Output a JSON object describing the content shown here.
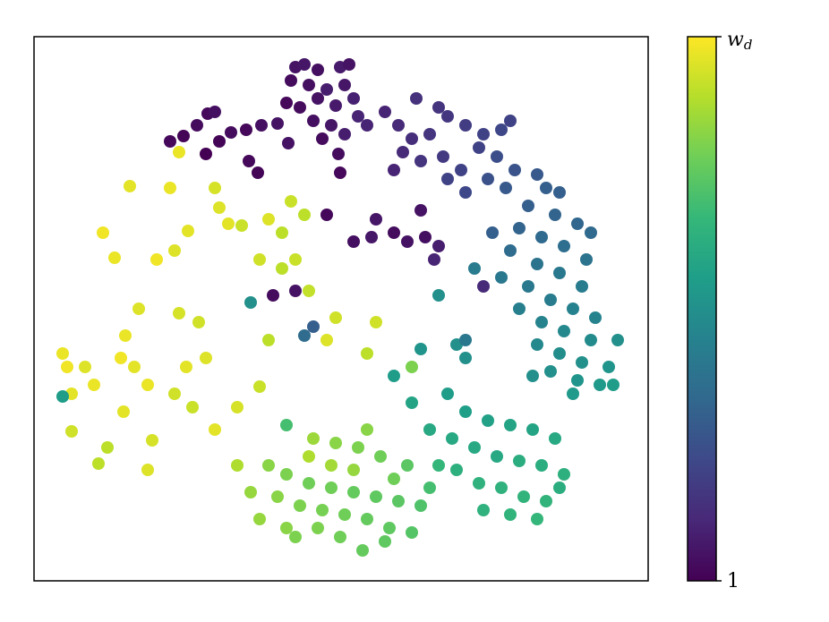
{
  "chart_data": {
    "type": "scatter",
    "xlim": [
      0,
      686
    ],
    "ylim": [
      0,
      608
    ],
    "colorbar": {
      "clim": [
        0,
        1
      ],
      "colors": [
        "#440154",
        "#482878",
        "#3e4989",
        "#31688e",
        "#26828e",
        "#1f9e89",
        "#35b779",
        "#6ece58",
        "#b5de2b",
        "#fde725"
      ],
      "ticks": [
        {
          "value": 0,
          "label": "1"
        },
        {
          "value": 1,
          "label": {
            "symbol": "w",
            "subscript": "d"
          }
        }
      ]
    },
    "x": [
      292,
      302,
      317,
      342,
      352,
      287,
      307,
      327,
      347,
      282,
      297,
      317,
      337,
      357,
      312,
      332,
      362,
      322,
      347,
      372,
      152,
      167,
      182,
      194,
      202,
      207,
      220,
      237,
      254,
      272,
      192,
      240,
      250,
      340,
      342,
      284,
      392,
      407,
      427,
      442,
      462,
      482,
      502,
      522,
      532,
      412,
      432,
      457,
      477,
      497,
      517,
      537,
      402,
      462,
      482,
      507,
      527,
      422,
      452,
      562,
      572,
      587,
      552,
      582,
      607,
      622,
      542,
      567,
      592,
      617,
      532,
      562,
      587,
      612,
      552,
      577,
      602,
      627,
      542,
      567,
      592,
      622,
      652,
      562,
      587,
      612,
      642,
      577,
      607,
      632,
      557,
      602,
      647,
      512,
      492,
      522,
      482,
      507,
      532,
      557,
      582,
      467,
      492,
      517,
      542,
      567,
      592,
      472,
      497,
      522,
      547,
      572,
      502,
      532,
      562,
      587,
      452,
      442,
      422,
      462,
      482,
      402,
      432,
      472,
      262,
      282,
      307,
      332,
      357,
      382,
      407,
      432,
      272,
      297,
      322,
      347,
      372,
      397,
      422,
      312,
      337,
      362,
      387,
      417,
      292,
      317,
      342,
      367,
      392,
      242,
      227,
      252,
      282,
      307,
      332,
      357,
      402,
      442,
      372,
      282,
      32,
      37,
      42,
      57,
      67,
      77,
      90,
      107,
      117,
      102,
      97,
      112,
      127,
      137,
      152,
      157,
      172,
      162,
      184,
      170,
      192,
      202,
      207,
      217,
      232,
      252,
      262,
      277,
      287,
      277,
      307,
      337,
      327,
      82,
      127,
      202,
      227,
      252,
      262,
      157,
      177,
      72,
      42,
      100,
      132,
      302,
      292,
      162,
      382,
      372,
      292,
      267,
      302,
      312,
      357,
      377,
      402,
      417,
      437,
      452,
      432,
      447,
      502,
      452,
      382,
      327,
      242,
      32,
      422,
      482
    ],
    "y": [
      574,
      577,
      571,
      574,
      577,
      559,
      554,
      549,
      554,
      534,
      529,
      539,
      531,
      539,
      514,
      509,
      519,
      494,
      499,
      509,
      491,
      497,
      509,
      522,
      524,
      491,
      501,
      504,
      509,
      511,
      477,
      469,
      456,
      477,
      456,
      489,
      524,
      509,
      539,
      499,
      519,
      509,
      499,
      504,
      514,
      479,
      469,
      474,
      459,
      484,
      474,
      459,
      459,
      449,
      434,
      449,
      439,
      494,
      529,
      454,
      439,
      434,
      419,
      409,
      399,
      389,
      394,
      384,
      374,
      359,
      369,
      354,
      344,
      329,
      329,
      314,
      304,
      294,
      304,
      289,
      279,
      269,
      269,
      264,
      254,
      244,
      239,
      234,
      224,
      219,
      229,
      209,
      219,
      389,
      349,
      339,
      189,
      179,
      174,
      169,
      159,
      159,
      149,
      139,
      134,
      129,
      119,
      124,
      109,
      104,
      94,
      89,
      79,
      74,
      69,
      104,
      129,
      169,
      199,
      209,
      249,
      229,
      259,
      264,
      129,
      119,
      109,
      104,
      99,
      94,
      89,
      84,
      94,
      84,
      79,
      74,
      69,
      59,
      54,
      159,
      154,
      149,
      139,
      129,
      49,
      59,
      49,
      34,
      44,
      99,
      129,
      69,
      59,
      139,
      129,
      124,
      114,
      104,
      169,
      174,
      254,
      239,
      209,
      239,
      219,
      389,
      361,
      441,
      304,
      274,
      249,
      239,
      219,
      359,
      439,
      369,
      391,
      299,
      289,
      239,
      249,
      439,
      417,
      399,
      397,
      359,
      404,
      389,
      424,
      349,
      324,
      294,
      269,
      149,
      124,
      169,
      194,
      217,
      269,
      209,
      194,
      131,
      167,
      189,
      157,
      409,
      359,
      479,
      289,
      254,
      324,
      319,
      274,
      284,
      379,
      384,
      389,
      379,
      384,
      374,
      414,
      359,
      329,
      319,
      404,
      409,
      311,
      206,
      239,
      269
    ],
    "c": [
      0.05,
      0.06,
      0.04,
      0.07,
      0.05,
      0.03,
      0.04,
      0.08,
      0.06,
      0.02,
      0.03,
      0.05,
      0.07,
      0.09,
      0.04,
      0.06,
      0.1,
      0.03,
      0.08,
      0.1,
      0.02,
      0.01,
      0.03,
      0.02,
      0.04,
      0.01,
      0.03,
      0.02,
      0.04,
      0.05,
      0.0,
      0.02,
      0.01,
      0.03,
      0.02,
      0.05,
      0.1,
      0.12,
      0.14,
      0.15,
      0.16,
      0.18,
      0.2,
      0.22,
      0.2,
      0.12,
      0.15,
      0.17,
      0.2,
      0.2,
      0.24,
      0.26,
      0.1,
      0.2,
      0.22,
      0.25,
      0.28,
      0.13,
      0.15,
      0.28,
      0.3,
      0.3,
      0.3,
      0.32,
      0.33,
      0.34,
      0.32,
      0.34,
      0.36,
      0.38,
      0.35,
      0.38,
      0.4,
      0.42,
      0.4,
      0.42,
      0.44,
      0.45,
      0.43,
      0.45,
      0.47,
      0.48,
      0.5,
      0.47,
      0.49,
      0.5,
      0.52,
      0.5,
      0.52,
      0.54,
      0.5,
      0.54,
      0.55,
      0.3,
      0.42,
      0.4,
      0.56,
      0.57,
      0.58,
      0.58,
      0.6,
      0.6,
      0.6,
      0.6,
      0.62,
      0.62,
      0.63,
      0.63,
      0.64,
      0.64,
      0.65,
      0.65,
      0.64,
      0.65,
      0.66,
      0.62,
      0.66,
      0.6,
      0.58,
      0.55,
      0.5,
      0.55,
      0.52,
      0.5,
      0.82,
      0.8,
      0.78,
      0.78,
      0.76,
      0.75,
      0.74,
      0.72,
      0.82,
      0.8,
      0.79,
      0.78,
      0.76,
      0.75,
      0.73,
      0.85,
      0.82,
      0.8,
      0.78,
      0.74,
      0.8,
      0.8,
      0.78,
      0.76,
      0.75,
      0.84,
      0.88,
      0.84,
      0.82,
      0.88,
      0.86,
      0.84,
      0.78,
      0.7,
      0.82,
      0.7,
      0.97,
      0.98,
      0.96,
      0.95,
      0.97,
      0.98,
      0.97,
      0.96,
      0.95,
      0.97,
      0.98,
      0.96,
      0.97,
      0.98,
      0.97,
      0.95,
      0.96,
      0.94,
      0.93,
      0.96,
      0.95,
      0.94,
      0.95,
      0.96,
      0.92,
      0.93,
      0.95,
      0.9,
      0.92,
      0.9,
      0.91,
      0.93,
      0.95,
      0.9,
      0.95,
      0.96,
      0.94,
      0.92,
      0.9,
      0.93,
      0.92,
      0.9,
      0.93,
      0.96,
      0.94,
      0.9,
      0.92,
      0.97,
      0.93,
      0.9,
      0.05,
      0.03,
      0.35,
      0.3,
      0.04,
      0.06,
      0.03,
      0.05,
      0.04,
      0.08,
      0.05,
      0.1,
      0.12,
      0.5,
      0.06,
      0.02,
      0.5,
      0.55,
      0.8,
      0.4
    ]
  }
}
